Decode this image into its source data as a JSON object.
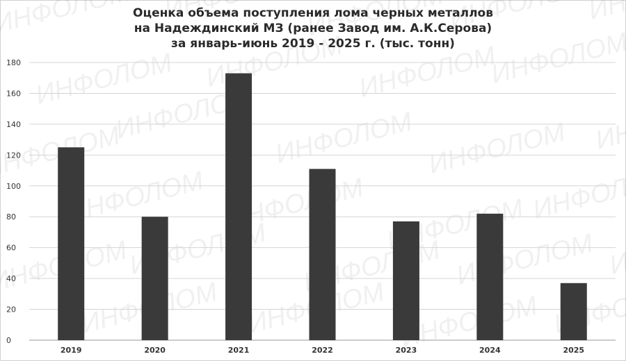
{
  "chart_data": {
    "type": "bar",
    "title_lines": [
      "Оценка объема поступления лома черных металлов",
      "на Надеждинский МЗ (ранее Завод им.  А.К.Серова)",
      "за январь-июнь 2019 - 2025 г. (тыс. тонн)"
    ],
    "categories": [
      "2019",
      "2020",
      "2021",
      "2022",
      "2023",
      "2024",
      "2025"
    ],
    "values": [
      125,
      80,
      173,
      111,
      77,
      82,
      37
    ],
    "ylim": [
      0,
      180
    ],
    "yticks": [
      0,
      20,
      40,
      60,
      80,
      100,
      120,
      140,
      160,
      180
    ],
    "grid": true,
    "bar_color": "#3b3a3a"
  },
  "watermark": "ИНФОЛОМ"
}
